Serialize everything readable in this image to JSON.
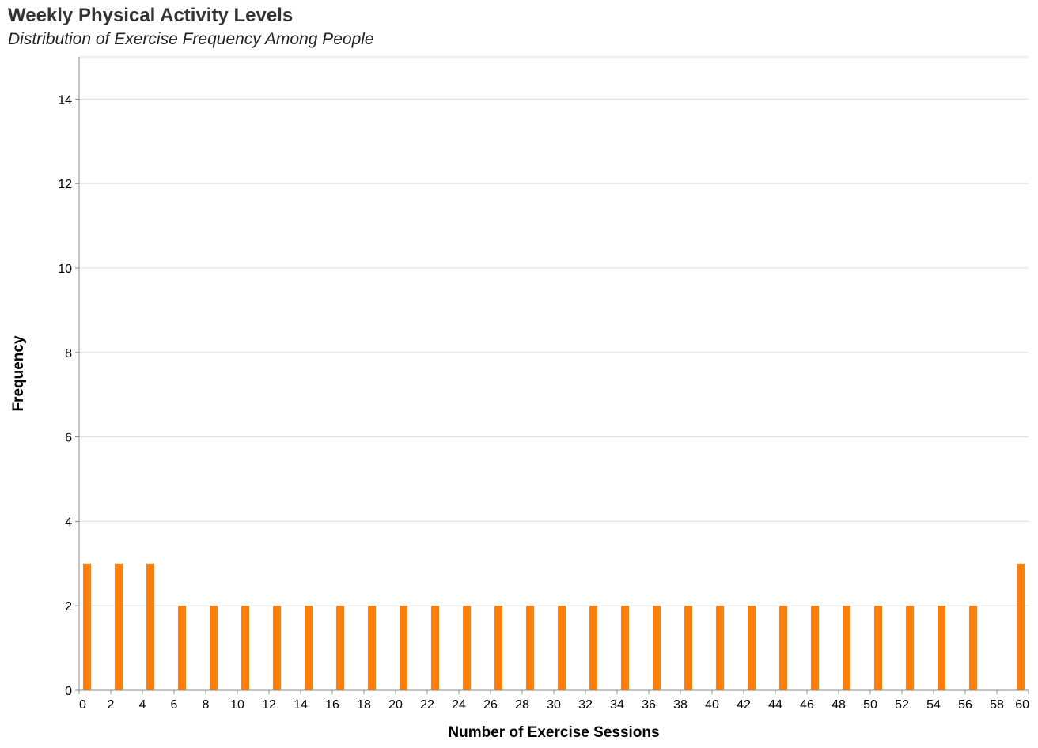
{
  "chart_data": {
    "type": "bar",
    "title": "Weekly Physical Activity Levels",
    "subtitle": "Distribution of Exercise Frequency Among People",
    "xlabel": "Number of Exercise Sessions",
    "ylabel": "Frequency",
    "xlim": [
      0,
      60
    ],
    "ylim": [
      0,
      15
    ],
    "x_ticks": [
      0,
      2,
      4,
      6,
      8,
      10,
      12,
      14,
      16,
      18,
      20,
      22,
      24,
      26,
      28,
      30,
      32,
      34,
      36,
      38,
      40,
      42,
      44,
      46,
      48,
      50,
      52,
      54,
      56,
      58,
      60
    ],
    "y_ticks": [
      0,
      2,
      4,
      6,
      8,
      10,
      12,
      14
    ],
    "bin_width": 1,
    "x": [
      0,
      2,
      4,
      6,
      8,
      10,
      12,
      14,
      16,
      18,
      20,
      22,
      24,
      26,
      28,
      30,
      32,
      34,
      36,
      38,
      40,
      42,
      44,
      46,
      48,
      50,
      52,
      54,
      56,
      59
    ],
    "values": [
      3,
      3,
      3,
      2,
      2,
      2,
      2,
      2,
      2,
      2,
      2,
      2,
      2,
      2,
      2,
      2,
      2,
      2,
      2,
      2,
      2,
      2,
      2,
      2,
      2,
      2,
      2,
      2,
      2,
      3
    ],
    "grid": true,
    "bar_color": "#ff7f0e"
  }
}
